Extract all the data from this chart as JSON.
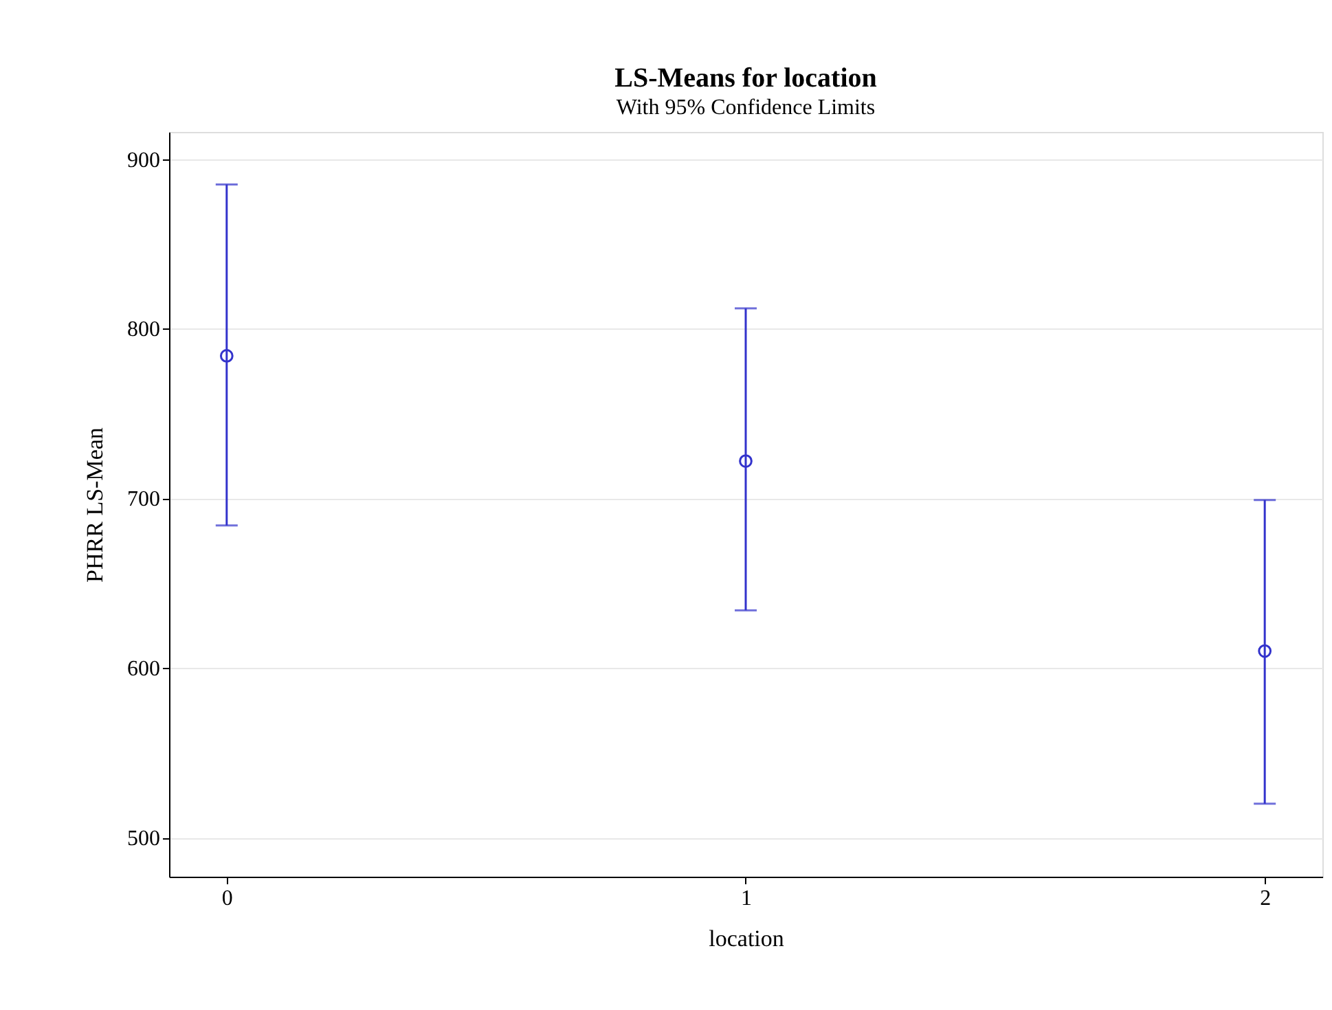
{
  "chart_data": {
    "type": "scatter",
    "title": "LS-Means for location",
    "subtitle": "With 95% Confidence Limits",
    "xlabel": "location",
    "ylabel": "PHRR LS-Mean",
    "categories": [
      "0",
      "1",
      "2"
    ],
    "series": [
      {
        "color": "#3333cc",
        "values": [
          784,
          722,
          610
        ],
        "errors": [
          [
            684,
            885
          ],
          [
            634,
            812
          ],
          [
            520,
            699
          ]
        ]
      }
    ],
    "ylim": [
      477,
      916
    ],
    "yticks": [
      500,
      600,
      700,
      800,
      900
    ],
    "grid": "y",
    "marker": "circle"
  }
}
